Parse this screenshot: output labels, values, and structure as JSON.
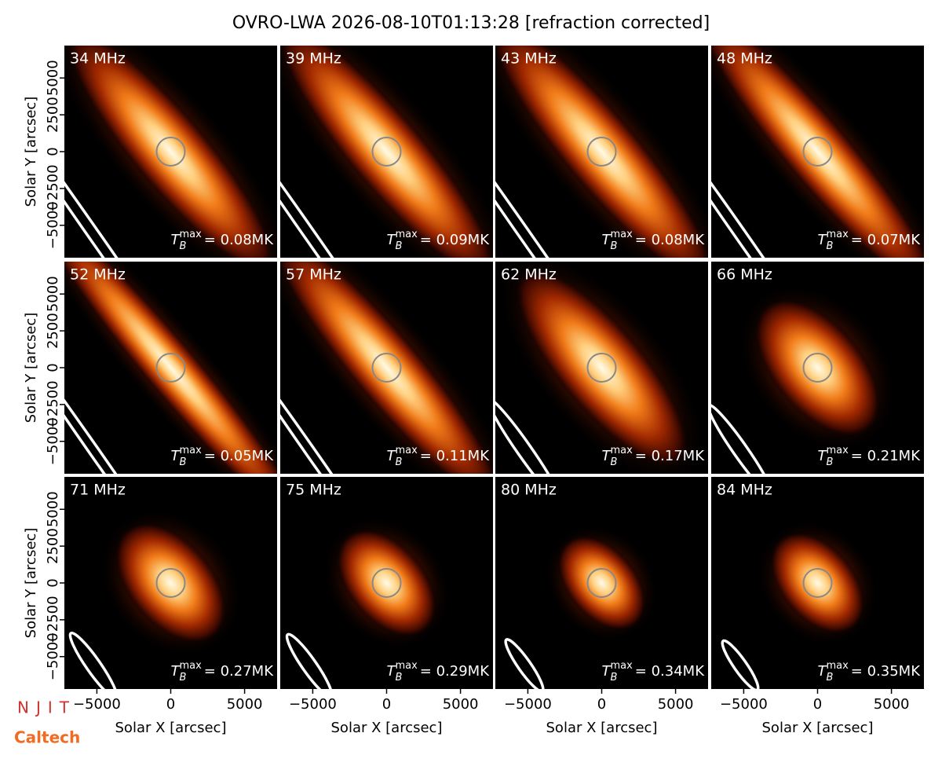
{
  "title": "OVRO-LWA 2026-08-10T01:13:28 [refraction corrected]",
  "logos": {
    "top": "NJIT",
    "bottom": "Caltech"
  },
  "chart_data": [
    {
      "type": "image",
      "label": "34 MHz",
      "annotation": {
        "symbol": "T",
        "subscript": "B",
        "superscript": "max",
        "text": "= 0.08MK"
      },
      "xlim": [
        -7200,
        7200
      ],
      "ylim": [
        -7200,
        7200
      ],
      "ylabel": "Solar Y [arcsec]",
      "yticks": [
        {
          "value": -5000,
          "label": "−5000"
        },
        {
          "value": -2500,
          "label": "−2500"
        },
        0,
        2500,
        5000
      ]
    },
    {
      "type": "image",
      "label": "39 MHz",
      "annotation": {
        "symbol": "T",
        "subscript": "B",
        "superscript": "max",
        "text": "= 0.09MK"
      },
      "xlim": [
        -7200,
        7200
      ],
      "ylim": [
        -7200,
        7200
      ]
    },
    {
      "type": "image",
      "label": "43 MHz",
      "annotation": {
        "symbol": "T",
        "subscript": "B",
        "superscript": "max",
        "text": "= 0.08MK"
      },
      "xlim": [
        -7200,
        7200
      ],
      "ylim": [
        -7200,
        7200
      ]
    },
    {
      "type": "image",
      "label": "48 MHz",
      "annotation": {
        "symbol": "T",
        "subscript": "B",
        "superscript": "max",
        "text": "= 0.07MK"
      },
      "xlim": [
        -7200,
        7200
      ],
      "ylim": [
        -7200,
        7200
      ]
    },
    {
      "type": "image",
      "label": "52 MHz",
      "annotation": {
        "symbol": "T",
        "subscript": "B",
        "superscript": "max",
        "text": "= 0.05MK"
      },
      "xlim": [
        -7200,
        7200
      ],
      "ylim": [
        -7200,
        7200
      ],
      "ylabel": "Solar Y [arcsec]",
      "yticks": [
        {
          "value": -5000,
          "label": "−5000"
        },
        {
          "value": -2500,
          "label": "−2500"
        },
        0,
        2500,
        5000
      ]
    },
    {
      "type": "image",
      "label": "57 MHz",
      "annotation": {
        "symbol": "T",
        "subscript": "B",
        "superscript": "max",
        "text": "= 0.11MK"
      },
      "xlim": [
        -7200,
        7200
      ],
      "ylim": [
        -7200,
        7200
      ]
    },
    {
      "type": "image",
      "label": "62 MHz",
      "annotation": {
        "symbol": "T",
        "subscript": "B",
        "superscript": "max",
        "text": "= 0.17MK"
      },
      "xlim": [
        -7200,
        7200
      ],
      "ylim": [
        -7200,
        7200
      ]
    },
    {
      "type": "image",
      "label": "66 MHz",
      "annotation": {
        "symbol": "T",
        "subscript": "B",
        "superscript": "max",
        "text": "= 0.21MK"
      },
      "xlim": [
        -7200,
        7200
      ],
      "ylim": [
        -7200,
        7200
      ]
    },
    {
      "type": "image",
      "label": "71 MHz",
      "annotation": {
        "symbol": "T",
        "subscript": "B",
        "superscript": "max",
        "text": "= 0.27MK"
      },
      "xlim": [
        -7200,
        7200
      ],
      "ylim": [
        -7200,
        7200
      ],
      "ylabel": "Solar Y [arcsec]",
      "yticks": [
        {
          "value": -5000,
          "label": "−5000"
        },
        {
          "value": -2500,
          "label": "−2500"
        },
        0,
        2500,
        5000
      ],
      "xlabel": "Solar X [arcsec]",
      "xticks": [
        {
          "value": -5000,
          "label": "−5000"
        },
        0,
        5000
      ]
    },
    {
      "type": "image",
      "label": "75 MHz",
      "annotation": {
        "symbol": "T",
        "subscript": "B",
        "superscript": "max",
        "text": "= 0.29MK"
      },
      "xlim": [
        -7200,
        7200
      ],
      "ylim": [
        -7200,
        7200
      ],
      "xlabel": "Solar X [arcsec]",
      "xticks": [
        {
          "value": -5000,
          "label": "−5000"
        },
        0,
        5000
      ]
    },
    {
      "type": "image",
      "label": "80 MHz",
      "annotation": {
        "symbol": "T",
        "subscript": "B",
        "superscript": "max",
        "text": "= 0.34MK"
      },
      "xlim": [
        -7200,
        7200
      ],
      "ylim": [
        -7200,
        7200
      ],
      "xlabel": "Solar X [arcsec]",
      "xticks": [
        {
          "value": -5000,
          "label": "−5000"
        },
        0,
        5000
      ]
    },
    {
      "type": "image",
      "label": "84 MHz",
      "annotation": {
        "symbol": "T",
        "subscript": "B",
        "superscript": "max",
        "text": "= 0.35MK"
      },
      "xlim": [
        -7200,
        7200
      ],
      "ylim": [
        -7200,
        7200
      ],
      "xlabel": "Solar X [arcsec]",
      "xticks": [
        {
          "value": -5000,
          "label": "−5000"
        },
        0,
        5000
      ]
    }
  ]
}
